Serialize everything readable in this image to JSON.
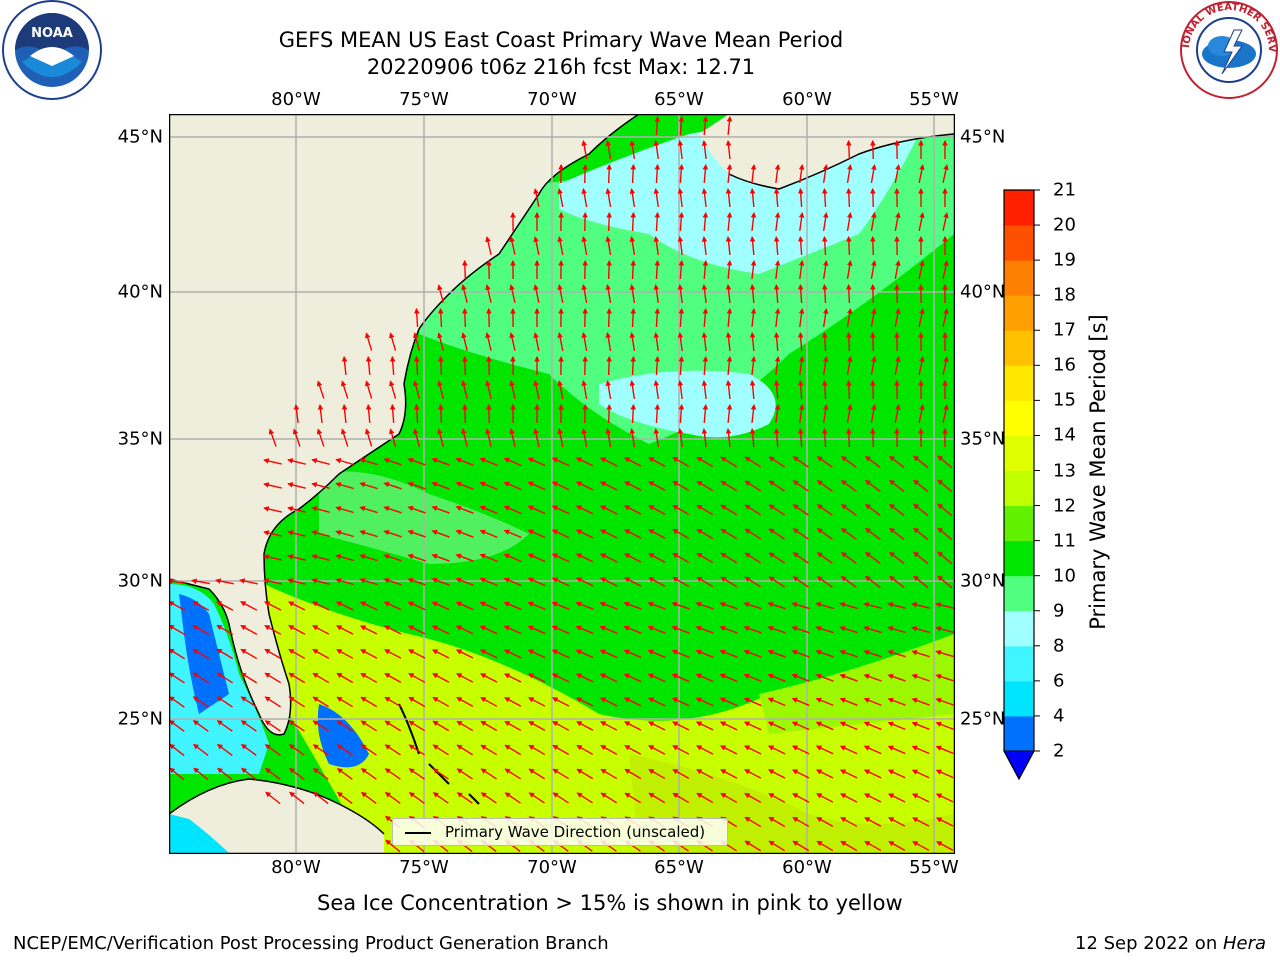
{
  "title": {
    "line1": "GEFS MEAN US East Coast Primary Wave Mean Period",
    "line2": "20220906 t06z 216h fcst   Max: 12.71"
  },
  "map": {
    "lon_labels": [
      "80°W",
      "75°W",
      "70°W",
      "65°W",
      "60°W",
      "55°W"
    ],
    "lat_labels": [
      "45°N",
      "40°N",
      "35°N",
      "30°N",
      "25°N"
    ],
    "colors": {
      "land": "#efeedc",
      "grid": "#b0b0b0",
      "arrow": "#ff0000",
      "coast": "#000000"
    },
    "legend_label": "Primary Wave Direction (unscaled)"
  },
  "colorbar": {
    "label": "Primary Wave Mean Period [s]",
    "ticks": [
      "2",
      "4",
      "6",
      "8",
      "9",
      "10",
      "11",
      "12",
      "13",
      "14",
      "15",
      "16",
      "17",
      "18",
      "19",
      "20",
      "21"
    ],
    "colors": [
      "#0070ff",
      "#00e5ff",
      "#40f5ff",
      "#a0ffff",
      "#50ff80",
      "#00e600",
      "#60f000",
      "#c0ff00",
      "#e0ff00",
      "#ffff00",
      "#ffe800",
      "#ffc000",
      "#ffa000",
      "#ff8000",
      "#ff5000",
      "#ff2000"
    ],
    "under_color": "#0000ff"
  },
  "note": "Sea Ice Concentration > 15% is shown in pink to yellow",
  "footer": {
    "left": "NCEP/EMC/Verification Post Processing Product Generation Branch",
    "date": "12 Sep 2022 on ",
    "host": "Hera"
  },
  "logos": {
    "noaa": "NOAA",
    "nws": "NATIONAL WEATHER SERVICE"
  }
}
